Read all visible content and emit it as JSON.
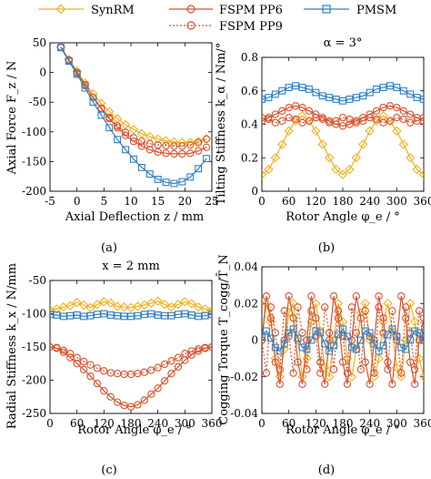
{
  "colors": {
    "synrm": "#f2b01e",
    "fspm": "#d9512c",
    "pmsm": "#2f7fc1"
  },
  "legend": {
    "synrm": "SynRM",
    "fspm_pp6": "FSPM PP6",
    "pmsm": "PMSM",
    "fspm_pp9": "FSPM PP9"
  },
  "chart_data": [
    {
      "type": "line",
      "panel": "(a)",
      "title": "",
      "xlabel": "Axial Deflection z / mm",
      "ylabel": "Axial Force F_z / N",
      "xlim": [
        -5,
        25
      ],
      "ylim": [
        -200,
        50
      ],
      "xticks": [
        "-5",
        "0",
        "5",
        "10",
        "15",
        "20",
        "25"
      ],
      "yticks": [
        "50",
        "0",
        "-50",
        "-100",
        "-150",
        "-200"
      ],
      "x": [
        -3,
        -1.5,
        0,
        1.5,
        3,
        4.5,
        6,
        7.5,
        9,
        10.5,
        12,
        13.5,
        15,
        16.5,
        18,
        19.5,
        21,
        22.5,
        24
      ],
      "series": [
        {
          "name": "SynRM",
          "values": [
            43,
            22,
            2,
            -18,
            -36,
            -52,
            -66,
            -78,
            -88,
            -96,
            -103,
            -108,
            -112,
            -115,
            -117,
            -118,
            -118,
            -116,
            -112
          ]
        },
        {
          "name": "FSPM PP6",
          "values": [
            43,
            21,
            0,
            -21,
            -42,
            -61,
            -78,
            -93,
            -106,
            -116,
            -124,
            -130,
            -134,
            -136,
            -137,
            -137,
            -136,
            -132,
            -126
          ]
        },
        {
          "name": "FSPM PP9",
          "values": [
            42,
            20,
            -1,
            -22,
            -42,
            -60,
            -76,
            -90,
            -101,
            -110,
            -116,
            -120,
            -122,
            -123,
            -124,
            -124,
            -122,
            -118,
            -112
          ]
        },
        {
          "name": "PMSM",
          "values": [
            42,
            19,
            -3,
            -26,
            -50,
            -72,
            -93,
            -113,
            -130,
            -146,
            -160,
            -171,
            -180,
            -185,
            -187,
            -184,
            -176,
            -162,
            -145
          ]
        }
      ]
    },
    {
      "type": "line",
      "panel": "(b)",
      "title": "α = 3°",
      "xlabel": "Rotor Angle φ_e / °",
      "ylabel": "Tilting Stiffness k_α / Nm/°",
      "xlim": [
        0,
        360
      ],
      "ylim": [
        0,
        0.8
      ],
      "xticks": [
        "0",
        "60",
        "120",
        "180",
        "240",
        "300",
        "360"
      ],
      "yticks": [
        "0",
        "0.2",
        "0.4",
        "0.6",
        "0.8"
      ],
      "x": [
        0,
        15,
        30,
        45,
        60,
        75,
        90,
        105,
        120,
        135,
        150,
        165,
        180,
        195,
        210,
        225,
        240,
        255,
        270,
        285,
        300,
        315,
        330,
        345,
        360
      ],
      "series": [
        {
          "name": "SynRM",
          "values": [
            0.1,
            0.13,
            0.2,
            0.28,
            0.36,
            0.42,
            0.45,
            0.42,
            0.36,
            0.28,
            0.2,
            0.13,
            0.1,
            0.13,
            0.2,
            0.28,
            0.36,
            0.42,
            0.45,
            0.42,
            0.36,
            0.28,
            0.2,
            0.13,
            0.1
          ]
        },
        {
          "name": "FSPM PP6",
          "values": [
            0.42,
            0.44,
            0.46,
            0.48,
            0.5,
            0.51,
            0.5,
            0.48,
            0.46,
            0.44,
            0.42,
            0.4,
            0.39,
            0.4,
            0.42,
            0.44,
            0.46,
            0.48,
            0.5,
            0.51,
            0.5,
            0.48,
            0.46,
            0.44,
            0.42
          ]
        },
        {
          "name": "FSPM PP9",
          "values": [
            0.44,
            0.43,
            0.41,
            0.42,
            0.44,
            0.43,
            0.41,
            0.42,
            0.44,
            0.43,
            0.41,
            0.42,
            0.44,
            0.43,
            0.41,
            0.42,
            0.44,
            0.43,
            0.41,
            0.42,
            0.44,
            0.43,
            0.41,
            0.42,
            0.44
          ]
        },
        {
          "name": "PMSM",
          "values": [
            0.55,
            0.56,
            0.58,
            0.6,
            0.62,
            0.63,
            0.62,
            0.61,
            0.59,
            0.57,
            0.56,
            0.55,
            0.54,
            0.55,
            0.56,
            0.57,
            0.59,
            0.61,
            0.62,
            0.63,
            0.62,
            0.6,
            0.58,
            0.56,
            0.55
          ]
        }
      ]
    },
    {
      "type": "line",
      "panel": "(c)",
      "title": "x = 2 mm",
      "xlabel": "Rotor Angle φ_e / °",
      "ylabel": "Radial Stiffness k_x / N/mm",
      "xlim": [
        0,
        360
      ],
      "ylim": [
        -250,
        -50
      ],
      "xticks": [
        "0",
        "60",
        "120",
        "180",
        "240",
        "300",
        "360"
      ],
      "yticks": [
        "-50",
        "-100",
        "-150",
        "-200",
        "-250"
      ],
      "x": [
        0,
        15,
        30,
        45,
        60,
        75,
        90,
        105,
        120,
        135,
        150,
        165,
        180,
        195,
        210,
        225,
        240,
        255,
        270,
        285,
        300,
        315,
        330,
        345,
        360
      ],
      "series": [
        {
          "name": "SynRM",
          "values": [
            -94,
            -93,
            -90,
            -88,
            -83,
            -87,
            -91,
            -86,
            -82,
            -84,
            -89,
            -90,
            -91,
            -89,
            -87,
            -84,
            -81,
            -86,
            -90,
            -86,
            -82,
            -85,
            -90,
            -93,
            -95
          ]
        },
        {
          "name": "FSPM PP6",
          "values": [
            -150,
            -152,
            -158,
            -166,
            -175,
            -184,
            -194,
            -205,
            -216,
            -225,
            -233,
            -238,
            -240,
            -237,
            -230,
            -221,
            -212,
            -201,
            -190,
            -180,
            -170,
            -162,
            -156,
            -152,
            -150
          ]
        },
        {
          "name": "FSPM PP9",
          "values": [
            -150,
            -151,
            -155,
            -160,
            -166,
            -172,
            -177,
            -182,
            -186,
            -189,
            -190,
            -191,
            -191,
            -190,
            -188,
            -185,
            -181,
            -176,
            -171,
            -166,
            -160,
            -156,
            -153,
            -151,
            -150
          ]
        },
        {
          "name": "PMSM",
          "values": [
            -101,
            -102,
            -104,
            -103,
            -102,
            -104,
            -103,
            -101,
            -100,
            -102,
            -103,
            -104,
            -104,
            -103,
            -101,
            -100,
            -102,
            -103,
            -103,
            -101,
            -100,
            -102,
            -104,
            -103,
            -101
          ]
        }
      ]
    },
    {
      "type": "line",
      "panel": "(d)",
      "title": "",
      "xlabel": "Rotor Angle φ_e / °",
      "ylabel": "Cogging Torque T_cogg/T̄_N",
      "xlim": [
        0,
        360
      ],
      "ylim": [
        -0.04,
        0.04
      ],
      "xticks": [
        "0",
        "60",
        "120",
        "180",
        "240",
        "300",
        "360"
      ],
      "yticks": [
        "0.04",
        "0.02",
        "0",
        "-0.02",
        "-0.04"
      ],
      "x": [
        0,
        10,
        20,
        30,
        40,
        50,
        60,
        70,
        80,
        90,
        100,
        110,
        120,
        130,
        140,
        150,
        160,
        170,
        180,
        190,
        200,
        210,
        220,
        230,
        240,
        250,
        260,
        270,
        280,
        290,
        300,
        310,
        320,
        330,
        340,
        350,
        360
      ],
      "series": [
        {
          "name": "SynRM",
          "values": [
            0,
            0.02,
            0.01,
            -0.01,
            -0.02,
            -0.005,
            0.015,
            0.02,
            0,
            -0.02,
            -0.01,
            0.01,
            0.02,
            0.005,
            -0.015,
            -0.02,
            0,
            0.02,
            0.01,
            -0.01,
            -0.02,
            -0.005,
            0.015,
            0.02,
            0,
            -0.02,
            -0.01,
            0.01,
            0.02,
            0.005,
            -0.015,
            -0.02,
            0,
            0.02,
            0.01,
            -0.01,
            -0.02
          ]
        },
        {
          "name": "FSPM PP6",
          "values": [
            0,
            0.024,
            0.012,
            -0.012,
            -0.024,
            0,
            0.024,
            0.012,
            -0.012,
            -0.024,
            0,
            0.024,
            0.012,
            -0.012,
            -0.024,
            0,
            0.024,
            0.012,
            -0.012,
            -0.024,
            0,
            0.024,
            0.012,
            -0.012,
            -0.024,
            0,
            0.024,
            0.012,
            -0.012,
            -0.024,
            0,
            0.024,
            0.012,
            -0.012,
            -0.024,
            0,
            0.012
          ]
        },
        {
          "name": "FSPM PP9",
          "values": [
            0,
            -0.018,
            0.018,
            0.004,
            -0.016,
            0.016,
            0.002,
            -0.018,
            0.018,
            0.004,
            -0.016,
            0.016,
            0.002,
            -0.018,
            0.018,
            0.004,
            -0.016,
            0.016,
            0.002,
            -0.018,
            0.018,
            0.004,
            -0.016,
            0.016,
            0.002,
            -0.018,
            0.018,
            0.004,
            -0.016,
            0.016,
            0.002,
            -0.018,
            0.018,
            0.004,
            -0.016,
            0.016,
            0
          ]
        },
        {
          "name": "PMSM",
          "values": [
            0.002,
            0.005,
            0.001,
            -0.004,
            -0.006,
            -0.002,
            0.004,
            0.006,
            0.001,
            -0.004,
            -0.005,
            0,
            0.005,
            0.004,
            -0.002,
            -0.006,
            -0.003,
            0.003,
            0.006,
            0.002,
            -0.004,
            -0.005,
            0,
            0.005,
            0.004,
            -0.002,
            -0.006,
            -0.003,
            0.003,
            0.006,
            0.002,
            -0.004,
            -0.005,
            0,
            0.005,
            0.004,
            0
          ]
        }
      ]
    }
  ],
  "captions": [
    "(a)",
    "(b)",
    "(c)",
    "(d)"
  ]
}
